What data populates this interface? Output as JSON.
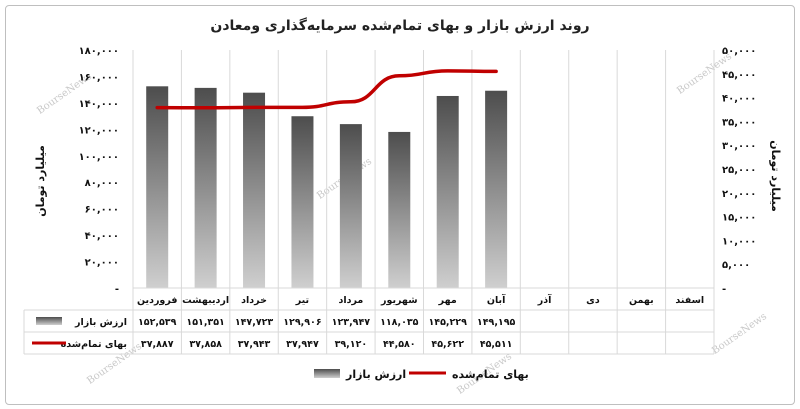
{
  "chart_data": {
    "type": "bar",
    "title": "روند ارزش بازار و بهای تمام‌شده سرمایه‌گذاری ومعادن",
    "categories": [
      "فروردین",
      "اردیبهشت",
      "خرداد",
      "تیر",
      "مرداد",
      "شهریور",
      "مهر",
      "آبان",
      "آذر",
      "دی",
      "بهمن",
      "اسفند"
    ],
    "series": [
      {
        "name": "ارزش بازار",
        "type": "bar",
        "axis": "left",
        "values": [
          152539,
          151351,
          147723,
          129906,
          123947,
          118035,
          145229,
          149195,
          null,
          null,
          null,
          null
        ],
        "labels": [
          "۱۵۲,۵۳۹",
          "۱۵۱,۳۵۱",
          "۱۴۷,۷۲۳",
          "۱۲۹,۹۰۶",
          "۱۲۳,۹۴۷",
          "۱۱۸,۰۳۵",
          "۱۴۵,۲۲۹",
          "۱۴۹,۱۹۵",
          "",
          "",
          "",
          ""
        ]
      },
      {
        "name": "بهای تمام‌شده",
        "type": "line",
        "axis": "right",
        "values": [
          37887,
          37858,
          37943,
          37947,
          39120,
          44580,
          45622,
          45511,
          null,
          null,
          null,
          null
        ],
        "labels": [
          "۳۷,۸۸۷",
          "۳۷,۸۵۸",
          "۳۷,۹۴۳",
          "۳۷,۹۴۷",
          "۳۹,۱۲۰",
          "۴۴,۵۸۰",
          "۴۵,۶۲۲",
          "۴۵,۵۱۱",
          "",
          "",
          "",
          ""
        ]
      }
    ],
    "y_left": {
      "label": "میلیارد تومان",
      "ylim": [
        0,
        180000
      ],
      "ticks": [
        0,
        20000,
        40000,
        60000,
        80000,
        100000,
        120000,
        140000,
        160000,
        180000
      ],
      "tick_labels": [
        "-",
        "۲۰,۰۰۰",
        "۴۰,۰۰۰",
        "۶۰,۰۰۰",
        "۸۰,۰۰۰",
        "۱۰۰,۰۰۰",
        "۱۲۰,۰۰۰",
        "۱۴۰,۰۰۰",
        "۱۶۰,۰۰۰",
        "۱۸۰,۰۰۰"
      ]
    },
    "y_right": {
      "label": "میلیارد تومان",
      "ylim": [
        0,
        50000
      ],
      "ticks": [
        0,
        5000,
        10000,
        15000,
        20000,
        25000,
        30000,
        35000,
        40000,
        45000,
        50000
      ],
      "tick_labels": [
        "-",
        "۵,۰۰۰",
        "۱۰,۰۰۰",
        "۱۵,۰۰۰",
        "۲۰,۰۰۰",
        "۲۵,۰۰۰",
        "۳۰,۰۰۰",
        "۳۵,۰۰۰",
        "۴۰,۰۰۰",
        "۴۵,۰۰۰",
        "۵۰,۰۰۰"
      ]
    },
    "grid": true,
    "data_table": true,
    "legend_position": "bottom",
    "watermark": "BourseNews",
    "colors": {
      "bar_dark": "#4d4d4d",
      "bar_light": "#cfcfcf",
      "line": "#c00000",
      "grid": "#d9d9d9"
    }
  }
}
